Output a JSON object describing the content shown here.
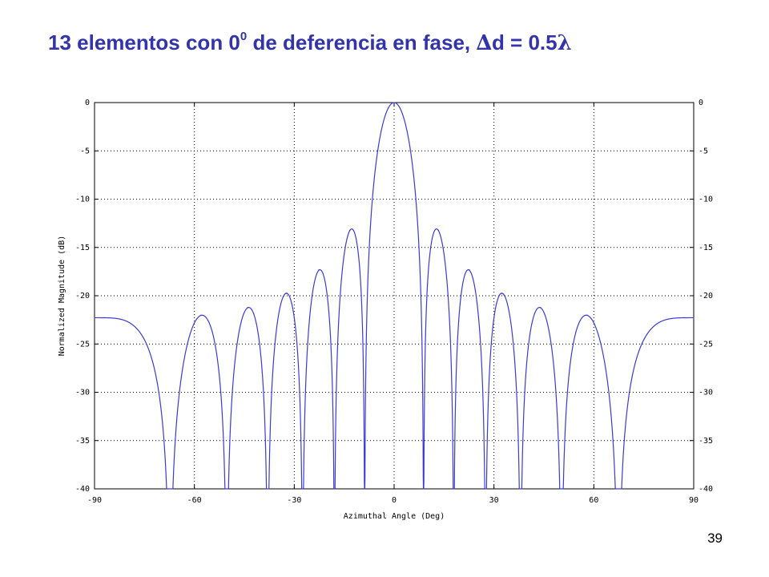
{
  "slide": {
    "title_main": "13 elementos con 0",
    "title_sup": "0",
    "title_rest": " de deferencia en fase, ",
    "title_delta": "∆",
    "title_d": "d = 0.5",
    "title_lambda": "λ",
    "page_number": "39"
  },
  "colors": {
    "title": "#3333aa",
    "series": "#3a3ad6",
    "grid": "#000000",
    "axis": "#000000"
  },
  "chart_data": {
    "type": "line",
    "title": "",
    "xlabel": "Azimuthal Angle (Deg)",
    "ylabel": "Normalized Magnitude (dB)",
    "xlim": [
      -90,
      90
    ],
    "ylim": [
      -40,
      0
    ],
    "xticks": [
      -90,
      -60,
      -30,
      0,
      30,
      60,
      90
    ],
    "xtick_labels": [
      "-90",
      "-60",
      "-30",
      "0",
      "30",
      "60",
      "90"
    ],
    "yticks": [
      0,
      -5,
      -10,
      -15,
      -20,
      -25,
      -30,
      -35,
      -40
    ],
    "ytick_labels_left": [
      "0",
      "-5",
      "-10",
      "-15",
      "-20",
      "-25",
      "-30",
      "-35",
      "-40"
    ],
    "ytick_labels_right": [
      "0",
      "-5",
      "-10",
      "-15",
      "-20",
      "-25",
      "-30",
      "-35",
      "-40"
    ],
    "grid": "dotted",
    "series": [
      {
        "elements": 13,
        "spacing_wavelengths": 0.5,
        "phase_shift_deg": 0,
        "floor_db": -40,
        "main_lobe": {
          "x": 0,
          "y": 0
        },
        "side_lobe_peaks": [
          {
            "x": -13.3,
            "y": -13.2
          },
          {
            "x": 13.3,
            "y": -13.2
          },
          {
            "x": -22.6,
            "y": -17.3
          },
          {
            "x": 22.6,
            "y": -17.3
          },
          {
            "x": -32.5,
            "y": -19.8
          },
          {
            "x": 32.5,
            "y": -19.8
          },
          {
            "x": -44,
            "y": -21.2
          },
          {
            "x": 44,
            "y": -21.2
          },
          {
            "x": -58,
            "y": -22.0
          },
          {
            "x": 58,
            "y": -22.0
          },
          {
            "x": -90,
            "y": -22.3
          },
          {
            "x": 90,
            "y": -22.3
          }
        ]
      }
    ]
  }
}
